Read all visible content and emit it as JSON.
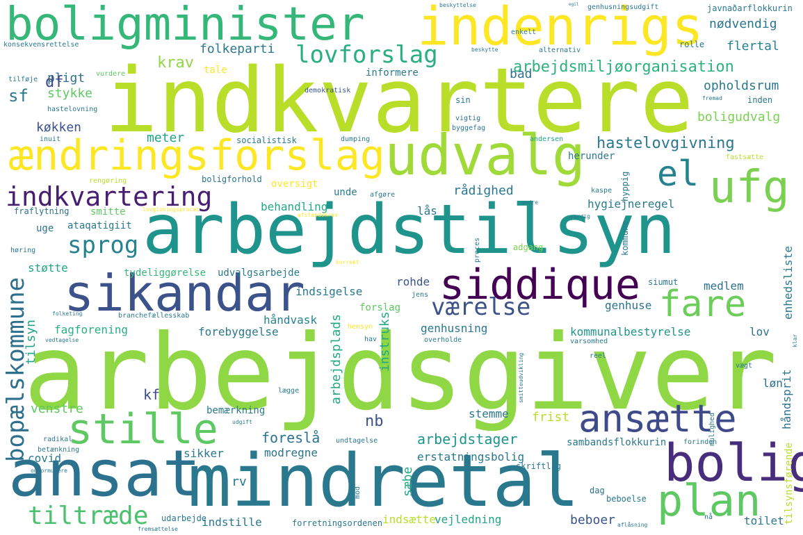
{
  "words": [
    {
      "text": "arbejdsgiver",
      "color": "#8fd744"
    },
    {
      "text": "indkvartere",
      "color": "#b8de29"
    },
    {
      "text": "arbejdstilsyn",
      "color": "#1f948c"
    },
    {
      "text": "mindretal",
      "color": "#2a788e"
    },
    {
      "text": "boligminister",
      "color": "#35b779"
    },
    {
      "text": "indenrigs",
      "color": "#fde725"
    },
    {
      "text": "ændringsforslag",
      "color": "#fde725"
    },
    {
      "text": "udvalg",
      "color": "#a0da39"
    },
    {
      "text": "ansat",
      "color": "#2c728e"
    },
    {
      "text": "sikandar",
      "color": "#3b528b"
    },
    {
      "text": "siddique",
      "color": "#440154"
    },
    {
      "text": "bolig",
      "color": "#472d7b"
    },
    {
      "text": "stille",
      "color": "#5ec962"
    },
    {
      "text": "ansætte",
      "color": "#3e4a89"
    },
    {
      "text": "plan",
      "color": "#5ec962"
    },
    {
      "text": "fare",
      "color": "#6ccd5a"
    },
    {
      "text": "ufg",
      "color": "#7ad151"
    },
    {
      "text": "el",
      "color": "#26828e"
    },
    {
      "text": "indkvartering",
      "color": "#481f70"
    },
    {
      "text": "lovforslag",
      "color": "#29af7f"
    },
    {
      "text": "sprog",
      "color": "#26828e"
    },
    {
      "text": "bopælskommune",
      "color": "#2d708e"
    },
    {
      "text": "tiltræde",
      "color": "#4ac16d"
    },
    {
      "text": "værelse",
      "color": "#3b528b"
    },
    {
      "text": "arbejdsmiljøorganisation",
      "color": "#2db27d"
    },
    {
      "text": "hastelovgivning",
      "color": "#2a788e"
    },
    {
      "text": "folkeparti",
      "color": "#2a788e"
    },
    {
      "text": "nødvendig",
      "color": "#2a788e"
    },
    {
      "text": "flertal",
      "color": "#26828e"
    },
    {
      "text": "krav",
      "color": "#8fd744"
    },
    {
      "text": "pligt",
      "color": "#2c728e"
    },
    {
      "text": "opholdsrum",
      "color": "#2a788e"
    },
    {
      "text": "boligudvalg",
      "color": "#7ad151"
    },
    {
      "text": "køkken",
      "color": "#3b528b"
    },
    {
      "text": "stykke",
      "color": "#5ec962"
    },
    {
      "text": "sf",
      "color": "#2a788e"
    },
    {
      "text": "df",
      "color": "#3e4a89"
    },
    {
      "text": "meter",
      "color": "#20a386"
    },
    {
      "text": "informere",
      "color": "#2a788e"
    },
    {
      "text": "bad",
      "color": "#2c728e"
    },
    {
      "text": "tale",
      "color": "#fde725"
    },
    {
      "text": "rådighed",
      "color": "#2a788e"
    },
    {
      "text": "behandling",
      "color": "#22a884"
    },
    {
      "text": "hygiejneregel",
      "color": "#2a788e"
    },
    {
      "text": "unde",
      "color": "#2a788e"
    },
    {
      "text": "lås",
      "color": "#2a788e"
    },
    {
      "text": "smitte",
      "color": "#5ec962"
    },
    {
      "text": "uge",
      "color": "#2c728e"
    },
    {
      "text": "støtte",
      "color": "#20a386"
    },
    {
      "text": "tydeliggørelse",
      "color": "#35b779"
    },
    {
      "text": "udvalgsarbejde",
      "color": "#2a788e"
    },
    {
      "text": "rohde",
      "color": "#3b528b"
    },
    {
      "text": "indsigelse",
      "color": "#2a788e"
    },
    {
      "text": "forslag",
      "color": "#5ec962"
    },
    {
      "text": "håndvask",
      "color": "#26828e"
    },
    {
      "text": "fagforening",
      "color": "#29af7f"
    },
    {
      "text": "forebyggelse",
      "color": "#2a788e"
    },
    {
      "text": "genhusning",
      "color": "#2a788e"
    },
    {
      "text": "kommunalbestyrelse",
      "color": "#1f948c"
    },
    {
      "text": "lov",
      "color": "#2c728e"
    },
    {
      "text": "genhuse",
      "color": "#2c728e"
    },
    {
      "text": "medlem",
      "color": "#2c728e"
    },
    {
      "text": "siumut",
      "color": "#2a788e"
    },
    {
      "text": "enhedsliste",
      "color": "#2a788e"
    },
    {
      "text": "instruks",
      "color": "#22a884"
    },
    {
      "text": "arbejdsplads",
      "color": "#22a884"
    },
    {
      "text": "nb",
      "color": "#3b528b"
    },
    {
      "text": "foreslå",
      "color": "#2c728e"
    },
    {
      "text": "arbejdstager",
      "color": "#1f948c"
    },
    {
      "text": "stemme",
      "color": "#2a788e"
    },
    {
      "text": "frist",
      "color": "#b8de29"
    },
    {
      "text": "håndsprit",
      "color": "#2c728e"
    },
    {
      "text": "løn",
      "color": "#2c728e"
    },
    {
      "text": "kf",
      "color": "#3e4a89"
    },
    {
      "text": "venstre",
      "color": "#5ec962"
    },
    {
      "text": "bemærkning",
      "color": "#2a788e"
    },
    {
      "text": "covid",
      "color": "#2a788e"
    },
    {
      "text": "sikker",
      "color": "#2a788e"
    },
    {
      "text": "modregne",
      "color": "#2c728e"
    },
    {
      "text": "erstatningsbolig",
      "color": "#2a788e"
    },
    {
      "text": "sambandsflokkurin",
      "color": "#2a788e"
    },
    {
      "text": "rv",
      "color": "#2a788e"
    },
    {
      "text": "sæbe",
      "color": "#22a884"
    },
    {
      "text": "indstille",
      "color": "#2a788e"
    },
    {
      "text": "indsætte",
      "color": "#b8de29"
    },
    {
      "text": "vejledning",
      "color": "#20a386"
    },
    {
      "text": "beboer",
      "color": "#3b528b"
    },
    {
      "text": "toilet",
      "color": "#2a788e"
    },
    {
      "text": "tilsynsførende",
      "color": "#b8de29"
    },
    {
      "text": "skriftlig",
      "color": "#2a788e"
    },
    {
      "text": "udarbejde",
      "color": "#2a788e"
    },
    {
      "text": "forretningsordenen",
      "color": "#2a788e"
    },
    {
      "text": "beboelse",
      "color": "#2a788e"
    },
    {
      "text": "dag",
      "color": "#2c728e"
    },
    {
      "text": "tilsyn",
      "color": "#20a386"
    },
    {
      "text": "ataqatigiit",
      "color": "#2a788e"
    },
    {
      "text": "herunder",
      "color": "#2a788e"
    },
    {
      "text": "oversigt",
      "color": "#fde725"
    },
    {
      "text": "boligforhold",
      "color": "#2c728e"
    },
    {
      "text": "hyppig",
      "color": "#2a788e"
    },
    {
      "text": "fraflytning",
      "color": "#2c728e"
    },
    {
      "text": "kommune",
      "color": "#2a788e"
    },
    {
      "text": "adgang",
      "color": "#7ad151"
    },
    {
      "text": "proces",
      "color": "#2a788e"
    },
    {
      "text": "byggefag",
      "color": "#2a788e"
    },
    {
      "text": "socialistisk",
      "color": "#2a788e"
    },
    {
      "text": "dumping",
      "color": "#2a788e"
    },
    {
      "text": "andersen",
      "color": "#20a386"
    },
    {
      "text": "fastsætte",
      "color": "#b8de29"
    },
    {
      "text": "inuit",
      "color": "#2a788e"
    },
    {
      "text": "vigtig",
      "color": "#2c728e"
    },
    {
      "text": "sin",
      "color": "#2a788e"
    },
    {
      "text": "inden",
      "color": "#2a788e"
    },
    {
      "text": "demokratisk",
      "color": "#3b528b"
    },
    {
      "text": "alternativ",
      "color": "#2a788e"
    },
    {
      "text": "rolle",
      "color": "#2a788e"
    },
    {
      "text": "enkelt",
      "color": "#2a788e"
    },
    {
      "text": "beskytte",
      "color": "#2a788e"
    },
    {
      "text": "genhusningsudgift",
      "color": "#2a788e"
    },
    {
      "text": "javnaðarflokkurin",
      "color": "#2a788e"
    },
    {
      "text": "konsekvensrettelse",
      "color": "#2a788e"
    },
    {
      "text": "tilføje",
      "color": "#2a788e"
    },
    {
      "text": "vurdere",
      "color": "#5ec962"
    },
    {
      "text": "hastelovning",
      "color": "#2a788e"
    },
    {
      "text": "beskyttelse",
      "color": "#2a788e"
    },
    {
      "text": "egil",
      "color": "#2a788e"
    },
    {
      "text": "fremad",
      "color": "#2a788e"
    },
    {
      "text": "rengøring",
      "color": "#b8de29"
    },
    {
      "text": "lovgivningsproces",
      "color": "#fde725"
    },
    {
      "text": "afstandskrav",
      "color": "#fde725"
    },
    {
      "text": "afgøre",
      "color": "#2a788e"
    },
    {
      "text": "kaspe",
      "color": "#2a788e"
    },
    {
      "text": "ændre",
      "color": "#2a788e"
    },
    {
      "text": "værdig",
      "color": "#2a788e"
    },
    {
      "text": "høring",
      "color": "#2a788e"
    },
    {
      "text": "hensyn",
      "color": "#fde725"
    },
    {
      "text": "folketing",
      "color": "#2a788e"
    },
    {
      "text": "vedtagelse",
      "color": "#2a788e"
    },
    {
      "text": "branchefællesskab",
      "color": "#2a788e"
    },
    {
      "text": "jens",
      "color": "#2a788e"
    },
    {
      "text": "hav",
      "color": "#2a788e"
    },
    {
      "text": "overholde",
      "color": "#2a788e"
    },
    {
      "text": "varsomhed",
      "color": "#2a788e"
    },
    {
      "text": "reel",
      "color": "#2a788e"
    },
    {
      "text": "vægt",
      "color": "#2a788e"
    },
    {
      "text": "lægge",
      "color": "#2a788e"
    },
    {
      "text": "udgift",
      "color": "#2a788e"
    },
    {
      "text": "radikal",
      "color": "#2a788e"
    },
    {
      "text": "betænkning",
      "color": "#2a788e"
    },
    {
      "text": "omformulere",
      "color": "#2a788e"
    },
    {
      "text": "undtagelse",
      "color": "#2a788e"
    },
    {
      "text": "forinden",
      "color": "#2a788e"
    },
    {
      "text": "mulighed",
      "color": "#2a788e"
    },
    {
      "text": "mod",
      "color": "#2a788e"
    },
    {
      "text": "nå",
      "color": "#2a788e"
    },
    {
      "text": "aflåsning",
      "color": "#2a788e"
    },
    {
      "text": "fremsættelse",
      "color": "#2a788e"
    },
    {
      "text": "klar",
      "color": "#2a788e"
    },
    {
      "text": "korrekt",
      "color": "#fde725"
    },
    {
      "text": "smitteudvikling",
      "color": "#2a788e"
    }
  ]
}
